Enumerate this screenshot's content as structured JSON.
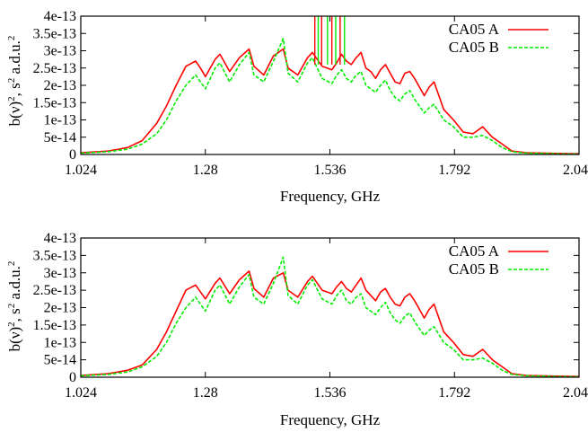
{
  "chart_data": [
    {
      "type": "line",
      "xlabel": "Frequency, GHz",
      "ylabel": "b(ν)², s² a.d.u.²",
      "ylabel_parts": {
        "base": "b(ν)",
        "s1": "2",
        "mid": ", s",
        "s2": "2",
        "tail": " a.d.u.",
        "s3": "2"
      },
      "xlim": [
        1.024,
        2.048
      ],
      "ylim": [
        0,
        4e-13
      ],
      "xticks": [
        1.024,
        1.28,
        1.536,
        1.792,
        2.048
      ],
      "xtick_labels": [
        "1.024",
        "1.28",
        "1.536",
        "1.792",
        "2.048"
      ],
      "yticks": [
        0,
        5e-14,
        1e-13,
        1.5e-13,
        2e-13,
        2.5e-13,
        3e-13,
        3.5e-13,
        4e-13
      ],
      "ytick_labels": [
        "0",
        "5e-14",
        "1e-13",
        "1.5e-13",
        "2e-13",
        "2.5e-13",
        "3e-13",
        "3.5e-13",
        "4e-13"
      ],
      "legend_position": "top-right",
      "series": [
        {
          "name": "CA05 A",
          "color": "#ff0000",
          "style": "solid",
          "x": [
            1.024,
            1.08,
            1.12,
            1.15,
            1.18,
            1.2,
            1.22,
            1.24,
            1.26,
            1.27,
            1.28,
            1.3,
            1.31,
            1.33,
            1.35,
            1.37,
            1.38,
            1.4,
            1.42,
            1.44,
            1.45,
            1.47,
            1.49,
            1.5,
            1.52,
            1.54,
            1.55,
            1.56,
            1.57,
            1.58,
            1.59,
            1.6,
            1.61,
            1.62,
            1.63,
            1.64,
            1.65,
            1.66,
            1.67,
            1.68,
            1.69,
            1.7,
            1.71,
            1.72,
            1.73,
            1.74,
            1.75,
            1.77,
            1.79,
            1.81,
            1.83,
            1.85,
            1.87,
            1.89,
            1.91,
            1.94,
            2.0,
            2.048
          ],
          "y": [
            5e-15,
            1e-14,
            2e-14,
            4e-14,
            9e-14,
            1.4e-13,
            2e-13,
            2.55e-13,
            2.7e-13,
            2.5e-13,
            2.25e-13,
            2.75e-13,
            2.9e-13,
            2.4e-13,
            2.8e-13,
            3.05e-13,
            2.55e-13,
            2.3e-13,
            2.85e-13,
            3.05e-13,
            2.5e-13,
            2.3e-13,
            2.8e-13,
            2.95e-13,
            2.55e-13,
            2.45e-13,
            2.65e-13,
            2.9e-13,
            2.7e-13,
            2.6e-13,
            2.8e-13,
            2.95e-13,
            2.5e-13,
            2.4e-13,
            2.2e-13,
            2.45e-13,
            2.6e-13,
            2.35e-13,
            2.1e-13,
            2.05e-13,
            2.35e-13,
            2.4e-13,
            2.2e-13,
            1.95e-13,
            1.7e-13,
            1.95e-13,
            2.1e-13,
            1.3e-13,
            1e-13,
            6.5e-14,
            6e-14,
            8e-14,
            5e-14,
            3e-14,
            1e-14,
            5e-15,
            3e-15,
            2e-15
          ]
        },
        {
          "name": "CA05 B",
          "color": "#00ee00",
          "style": "dashed",
          "x": [
            1.024,
            1.08,
            1.12,
            1.15,
            1.18,
            1.2,
            1.22,
            1.24,
            1.26,
            1.27,
            1.28,
            1.3,
            1.31,
            1.33,
            1.35,
            1.37,
            1.38,
            1.4,
            1.42,
            1.44,
            1.45,
            1.47,
            1.49,
            1.5,
            1.52,
            1.54,
            1.55,
            1.56,
            1.57,
            1.58,
            1.59,
            1.6,
            1.61,
            1.62,
            1.63,
            1.64,
            1.65,
            1.66,
            1.67,
            1.68,
            1.69,
            1.7,
            1.71,
            1.72,
            1.73,
            1.74,
            1.75,
            1.77,
            1.79,
            1.81,
            1.83,
            1.85,
            1.87,
            1.89,
            1.91,
            1.94,
            2.0,
            2.048
          ],
          "y": [
            4e-15,
            8e-15,
            1.5e-14,
            3e-14,
            6e-14,
            1e-13,
            1.55e-13,
            2e-13,
            2.3e-13,
            2.1e-13,
            1.9e-13,
            2.5e-13,
            2.65e-13,
            2.1e-13,
            2.6e-13,
            2.95e-13,
            2.3e-13,
            2.1e-13,
            2.7e-13,
            3.35e-13,
            2.35e-13,
            2.1e-13,
            2.65e-13,
            2.8e-13,
            2.2e-13,
            2.05e-13,
            2.3e-13,
            2.45e-13,
            2.2e-13,
            2.1e-13,
            2.3e-13,
            2.4e-13,
            2e-13,
            1.9e-13,
            1.8e-13,
            2e-13,
            2.15e-13,
            1.85e-13,
            1.65e-13,
            1.55e-13,
            1.75e-13,
            1.85e-13,
            1.6e-13,
            1.4e-13,
            1.2e-13,
            1.35e-13,
            1.45e-13,
            1e-13,
            8e-14,
            5e-14,
            5e-14,
            5.5e-14,
            4e-14,
            2e-14,
            8e-15,
            4e-15,
            2e-15,
            1e-15
          ]
        }
      ],
      "spikes": [
        {
          "x": 1.505,
          "y": 4e-13,
          "series": 0
        },
        {
          "x": 1.512,
          "y": 4e-13,
          "series": 1
        },
        {
          "x": 1.519,
          "y": 4e-13,
          "series": 0
        },
        {
          "x": 1.531,
          "y": 4e-13,
          "series": 1
        },
        {
          "x": 1.54,
          "y": 4e-13,
          "series": 0
        },
        {
          "x": 1.548,
          "y": 4e-13,
          "series": 1
        },
        {
          "x": 1.557,
          "y": 4e-13,
          "series": 0
        },
        {
          "x": 1.566,
          "y": 4e-13,
          "series": 1
        }
      ]
    },
    {
      "type": "line",
      "xlabel": "Frequency, GHz",
      "ylabel": "b(ν)², s² a.d.u.²",
      "ylabel_parts": {
        "base": "b(ν)",
        "s1": "2",
        "mid": ", s",
        "s2": "2",
        "tail": " a.d.u.",
        "s3": "2"
      },
      "xlim": [
        1.024,
        2.048
      ],
      "ylim": [
        0,
        4e-13
      ],
      "xticks": [
        1.024,
        1.28,
        1.536,
        1.792,
        2.048
      ],
      "xtick_labels": [
        "1.024",
        "1.28",
        "1.536",
        "1.792",
        "2.048"
      ],
      "yticks": [
        0,
        5e-14,
        1e-13,
        1.5e-13,
        2e-13,
        2.5e-13,
        3e-13,
        3.5e-13,
        4e-13
      ],
      "ytick_labels": [
        "0",
        "5e-14",
        "1e-13",
        "1.5e-13",
        "2e-13",
        "2.5e-13",
        "3e-13",
        "3.5e-13",
        "4e-13"
      ],
      "legend_position": "top-right",
      "series": [
        {
          "name": "CA05 A",
          "color": "#ff0000",
          "style": "solid",
          "x": [
            1.024,
            1.08,
            1.12,
            1.15,
            1.18,
            1.2,
            1.22,
            1.24,
            1.26,
            1.27,
            1.28,
            1.3,
            1.31,
            1.33,
            1.35,
            1.37,
            1.38,
            1.4,
            1.42,
            1.44,
            1.45,
            1.47,
            1.49,
            1.5,
            1.52,
            1.54,
            1.55,
            1.56,
            1.57,
            1.58,
            1.59,
            1.6,
            1.61,
            1.62,
            1.63,
            1.64,
            1.65,
            1.66,
            1.67,
            1.68,
            1.69,
            1.7,
            1.71,
            1.72,
            1.73,
            1.74,
            1.75,
            1.77,
            1.79,
            1.81,
            1.83,
            1.85,
            1.87,
            1.89,
            1.91,
            1.94,
            2.0,
            2.048
          ],
          "y": [
            5e-15,
            1e-14,
            2e-14,
            3.5e-14,
            8e-14,
            1.3e-13,
            1.9e-13,
            2.5e-13,
            2.65e-13,
            2.45e-13,
            2.25e-13,
            2.7e-13,
            2.85e-13,
            2.4e-13,
            2.8e-13,
            3.05e-13,
            2.55e-13,
            2.3e-13,
            2.85e-13,
            3e-13,
            2.5e-13,
            2.3e-13,
            2.75e-13,
            2.9e-13,
            2.5e-13,
            2.4e-13,
            2.6e-13,
            2.75e-13,
            2.55e-13,
            2.45e-13,
            2.65e-13,
            2.85e-13,
            2.5e-13,
            2.35e-13,
            2.2e-13,
            2.45e-13,
            2.55e-13,
            2.3e-13,
            2.1e-13,
            2.05e-13,
            2.3e-13,
            2.4e-13,
            2.2e-13,
            1.95e-13,
            1.7e-13,
            1.95e-13,
            2.1e-13,
            1.3e-13,
            1e-13,
            6.5e-14,
            6e-14,
            8e-14,
            5e-14,
            3e-14,
            1e-14,
            5e-15,
            3e-15,
            2e-15
          ]
        },
        {
          "name": "CA05 B",
          "color": "#00ee00",
          "style": "dashed",
          "x": [
            1.024,
            1.08,
            1.12,
            1.15,
            1.18,
            1.2,
            1.22,
            1.24,
            1.26,
            1.27,
            1.28,
            1.3,
            1.31,
            1.33,
            1.35,
            1.37,
            1.38,
            1.4,
            1.42,
            1.44,
            1.45,
            1.47,
            1.49,
            1.5,
            1.52,
            1.54,
            1.55,
            1.56,
            1.57,
            1.58,
            1.59,
            1.6,
            1.61,
            1.62,
            1.63,
            1.64,
            1.65,
            1.66,
            1.67,
            1.68,
            1.69,
            1.7,
            1.71,
            1.72,
            1.73,
            1.74,
            1.75,
            1.77,
            1.79,
            1.81,
            1.83,
            1.85,
            1.87,
            1.89,
            1.91,
            1.94,
            2.0,
            2.048
          ],
          "y": [
            4e-15,
            8e-15,
            1.5e-14,
            3e-14,
            6e-14,
            1e-13,
            1.55e-13,
            2e-13,
            2.3e-13,
            2.1e-13,
            1.9e-13,
            2.5e-13,
            2.65e-13,
            2.1e-13,
            2.6e-13,
            2.95e-13,
            2.3e-13,
            2.1e-13,
            2.7e-13,
            3.45e-13,
            2.35e-13,
            2.1e-13,
            2.65e-13,
            2.8e-13,
            2.25e-13,
            2.1e-13,
            2.35e-13,
            2.5e-13,
            2.2e-13,
            2.1e-13,
            2.3e-13,
            2.4e-13,
            2e-13,
            1.9e-13,
            1.8e-13,
            2e-13,
            2.15e-13,
            1.85e-13,
            1.65e-13,
            1.55e-13,
            1.75e-13,
            1.85e-13,
            1.6e-13,
            1.4e-13,
            1.2e-13,
            1.35e-13,
            1.45e-13,
            1e-13,
            8e-14,
            5e-14,
            5e-14,
            5.5e-14,
            4e-14,
            2e-14,
            8e-15,
            4e-15,
            2e-15,
            1e-15
          ]
        }
      ],
      "spikes": []
    }
  ]
}
